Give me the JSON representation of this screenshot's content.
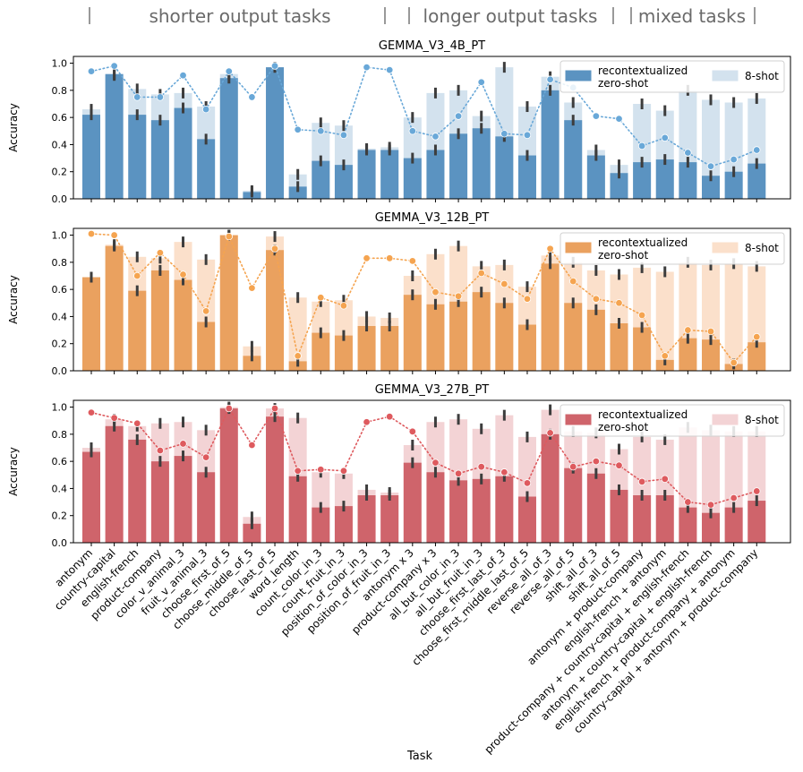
{
  "header": {
    "segments": [
      {
        "label": "shorter output tasks"
      },
      {
        "label": "longer output tasks"
      },
      {
        "label": "mixed tasks"
      }
    ]
  },
  "x_axis_title": "Task",
  "y_axis_label": "Accuracy",
  "legend": {
    "recontextualized": "recontextualized",
    "zero_shot": "zero-shot",
    "few_shot": "8-shot"
  },
  "colors": {
    "blue": "#5b93c1",
    "blue_light": "#d3e2ee",
    "blue_dot": "#69a8d8",
    "orange": "#eaa15f",
    "orange_light": "#fbe0cb",
    "orange_dot": "#f5a450",
    "red": "#cf646b",
    "red_light": "#f3d3d5",
    "red_dot": "#de5a5e",
    "errbar": "#3d3d3d",
    "axis": "#000000"
  },
  "chart_data": [
    {
      "type": "bar",
      "title": "GEMMA_V3_4B_PT",
      "xlabel": "Task",
      "ylabel": "Accuracy",
      "ylim": [
        0,
        1.05
      ],
      "yticks": [
        "0.0",
        "0.2",
        "0.4",
        "0.6",
        "0.8",
        "1.0"
      ],
      "categories": [
        "antonym",
        "country-capital",
        "english-french",
        "product-company",
        "color_v_animal_3",
        "fruit_v_animal_3",
        "choose_first_of_5",
        "choose_middle_of_5",
        "choose_last_of_5",
        "word_length",
        "count_color_in_3",
        "count_fruit_in_3",
        "position_of_color_in_3",
        "position_of_fruit_in_3",
        "antonym x 3",
        "product-company x 3",
        "all_but_color_in_3",
        "all_but_fruit_in_3",
        "choose_first_last_of_3",
        "choose_first_middle_last_of_5",
        "reverse_all_of_3",
        "reverse_all_of_5",
        "shift_all_of_3",
        "shift_all_of_5",
        "antonym + product-company",
        "english-french + antonym",
        "product-company + country-capital + english-french",
        "antonym + country-capital + english-french",
        "english-french + product-company + antonym",
        "country-capital + antonym + product-company"
      ],
      "series": [
        {
          "name": "8-shot",
          "values": [
            0.66,
            0.91,
            0.81,
            0.77,
            0.78,
            0.68,
            0.92,
            0.06,
            0.97,
            0.18,
            0.56,
            0.54,
            0.37,
            0.38,
            0.6,
            0.78,
            0.8,
            0.61,
            0.97,
            0.68,
            0.9,
            0.71,
            0.36,
            0.25,
            0.7,
            0.65,
            0.8,
            0.73,
            0.71,
            0.74
          ]
        },
        {
          "name": "zero-shot",
          "values": [
            0.62,
            0.92,
            0.62,
            0.58,
            0.67,
            0.44,
            0.89,
            0.05,
            0.97,
            0.09,
            0.28,
            0.25,
            0.36,
            0.36,
            0.3,
            0.36,
            0.48,
            0.52,
            0.46,
            0.32,
            0.8,
            0.58,
            0.32,
            0.19,
            0.27,
            0.29,
            0.27,
            0.17,
            0.2,
            0.26
          ]
        },
        {
          "name": "recontextualized",
          "values": [
            0.94,
            0.98,
            0.75,
            0.75,
            0.91,
            0.66,
            0.94,
            0.75,
            0.98,
            0.51,
            0.5,
            0.47,
            0.97,
            0.95,
            0.5,
            0.46,
            0.61,
            0.86,
            0.48,
            0.47,
            0.88,
            0.82,
            0.61,
            0.59,
            0.39,
            0.45,
            0.34,
            0.24,
            0.29,
            0.36
          ]
        }
      ]
    },
    {
      "type": "bar",
      "title": "GEMMA_V3_12B_PT",
      "xlabel": "Task",
      "ylabel": "Accuracy",
      "ylim": [
        0,
        1.05
      ],
      "yticks": [
        "0.0",
        "0.2",
        "0.4",
        "0.6",
        "0.8",
        "1.0"
      ],
      "categories": [
        "antonym",
        "country-capital",
        "english-french",
        "product-company",
        "color_v_animal_3",
        "fruit_v_animal_3",
        "choose_first_of_5",
        "choose_middle_of_5",
        "choose_last_of_5",
        "word_length",
        "count_color_in_3",
        "count_fruit_in_3",
        "position_of_color_in_3",
        "position_of_fruit_in_3",
        "antonym x 3",
        "product-company x 3",
        "all_but_color_in_3",
        "all_but_fruit_in_3",
        "choose_first_last_of_3",
        "choose_first_middle_last_of_5",
        "reverse_all_of_3",
        "reverse_all_of_5",
        "shift_all_of_3",
        "shift_all_of_5",
        "antonym + product-company",
        "english-french + antonym",
        "product-company + country-capital + english-french",
        "antonym + country-capital + english-french",
        "english-french + product-company + antonym",
        "country-capital + antonym + product-company"
      ],
      "series": [
        {
          "name": "8-shot",
          "values": [
            0.69,
            0.93,
            0.84,
            0.83,
            0.95,
            0.82,
            1.0,
            0.18,
            0.99,
            0.54,
            0.51,
            0.52,
            0.4,
            0.39,
            0.7,
            0.86,
            0.92,
            0.77,
            0.78,
            0.62,
            0.85,
            0.8,
            0.74,
            0.71,
            0.76,
            0.73,
            0.8,
            0.78,
            0.79,
            0.77
          ]
        },
        {
          "name": "zero-shot",
          "values": [
            0.69,
            0.92,
            0.59,
            0.74,
            0.67,
            0.36,
            1.0,
            0.11,
            0.89,
            0.07,
            0.28,
            0.26,
            0.33,
            0.33,
            0.56,
            0.49,
            0.51,
            0.58,
            0.5,
            0.34,
            0.79,
            0.5,
            0.45,
            0.35,
            0.32,
            0.08,
            0.24,
            0.23,
            0.05,
            0.21
          ]
        },
        {
          "name": "recontextualized",
          "values": [
            1.01,
            1.0,
            0.7,
            0.87,
            0.71,
            0.44,
            0.99,
            0.61,
            0.9,
            0.11,
            0.54,
            0.48,
            0.83,
            0.83,
            0.81,
            0.58,
            0.55,
            0.72,
            0.64,
            0.53,
            0.9,
            0.66,
            0.53,
            0.5,
            0.41,
            0.11,
            0.3,
            0.29,
            0.06,
            0.25
          ]
        }
      ]
    },
    {
      "type": "bar",
      "title": "GEMMA_V3_27B_PT",
      "xlabel": "Task",
      "ylabel": "Accuracy",
      "ylim": [
        0,
        1.05
      ],
      "yticks": [
        "0.0",
        "0.2",
        "0.4",
        "0.6",
        "0.8",
        "1.0"
      ],
      "categories": [
        "antonym",
        "country-capital",
        "english-french",
        "product-company",
        "color_v_animal_3",
        "fruit_v_animal_3",
        "choose_first_of_5",
        "choose_middle_of_5",
        "choose_last_of_5",
        "word_length",
        "count_color_in_3",
        "count_fruit_in_3",
        "position_of_color_in_3",
        "position_of_fruit_in_3",
        "antonym x 3",
        "product-company x 3",
        "all_but_color_in_3",
        "all_but_fruit_in_3",
        "choose_first_last_of_3",
        "choose_first_middle_last_of_5",
        "reverse_all_of_3",
        "reverse_all_of_5",
        "shift_all_of_3",
        "shift_all_of_5",
        "antonym + product-company",
        "english-french + antonym",
        "product-company + country-capital + english-french",
        "antonym + country-capital + english-french",
        "english-french + product-company + antonym",
        "country-capital + antonym + product-company"
      ],
      "series": [
        {
          "name": "8-shot",
          "values": [
            0.7,
            0.91,
            0.86,
            0.88,
            0.89,
            0.83,
            1.0,
            0.19,
            0.99,
            0.92,
            0.52,
            0.51,
            0.39,
            0.37,
            0.72,
            0.89,
            0.91,
            0.84,
            0.94,
            0.78,
            0.98,
            0.82,
            0.81,
            0.69,
            0.78,
            0.76,
            0.85,
            0.83,
            0.82,
            0.82
          ]
        },
        {
          "name": "zero-shot",
          "values": [
            0.67,
            0.86,
            0.76,
            0.6,
            0.64,
            0.52,
            0.99,
            0.14,
            0.93,
            0.49,
            0.26,
            0.27,
            0.35,
            0.35,
            0.59,
            0.52,
            0.46,
            0.47,
            0.49,
            0.34,
            0.8,
            0.55,
            0.51,
            0.39,
            0.35,
            0.35,
            0.26,
            0.22,
            0.26,
            0.31
          ]
        },
        {
          "name": "recontextualized",
          "values": [
            0.96,
            0.92,
            0.88,
            0.68,
            0.73,
            0.63,
            0.99,
            0.72,
            0.99,
            0.53,
            0.54,
            0.53,
            0.89,
            0.93,
            0.82,
            0.59,
            0.51,
            0.56,
            0.52,
            0.44,
            0.81,
            0.56,
            0.6,
            0.57,
            0.45,
            0.47,
            0.3,
            0.28,
            0.33,
            0.38
          ]
        }
      ]
    }
  ]
}
